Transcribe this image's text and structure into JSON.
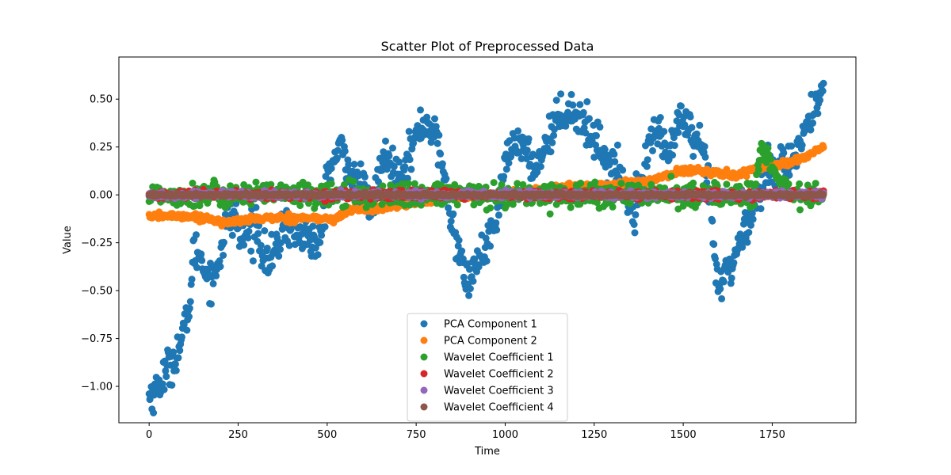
{
  "chart_data": {
    "type": "scatter",
    "title": "Scatter Plot of Preprocessed Data",
    "xlabel": "Time",
    "ylabel": "Value",
    "xlim": [
      -85,
      1985
    ],
    "ylim": [
      -1.19,
      0.72
    ],
    "xticks": [
      0,
      250,
      500,
      750,
      1000,
      1250,
      1500,
      1750
    ],
    "yticks": [
      -1.0,
      -0.75,
      -0.5,
      -0.25,
      0.0,
      0.25,
      0.5
    ],
    "xtick_labels": [
      "0",
      "250",
      "500",
      "750",
      "1000",
      "1250",
      "1500",
      "1750"
    ],
    "ytick_labels": [
      "−1.00",
      "−0.75",
      "−0.50",
      "−0.25",
      "0.00",
      "0.25",
      "0.50"
    ],
    "grid": false,
    "legend_position": "lower-center",
    "n_points_per_series": 1895,
    "series": [
      {
        "name": "PCA Component 1",
        "color": "#1f77b4",
        "anchors": [
          [
            0,
            -1.05
          ],
          [
            20,
            -1.02
          ],
          [
            40,
            -0.95
          ],
          [
            60,
            -0.88
          ],
          [
            80,
            -0.82
          ],
          [
            100,
            -0.7
          ],
          [
            115,
            -0.55
          ],
          [
            125,
            -0.3
          ],
          [
            140,
            -0.3
          ],
          [
            160,
            -0.4
          ],
          [
            180,
            -0.45
          ],
          [
            200,
            -0.3
          ],
          [
            220,
            -0.12
          ],
          [
            240,
            -0.1
          ],
          [
            260,
            -0.25
          ],
          [
            280,
            -0.2
          ],
          [
            300,
            -0.15
          ],
          [
            320,
            -0.3
          ],
          [
            340,
            -0.35
          ],
          [
            360,
            -0.28
          ],
          [
            380,
            -0.15
          ],
          [
            400,
            -0.18
          ],
          [
            420,
            -0.22
          ],
          [
            440,
            -0.2
          ],
          [
            460,
            -0.25
          ],
          [
            480,
            -0.28
          ],
          [
            500,
            0.1
          ],
          [
            520,
            0.18
          ],
          [
            540,
            0.25
          ],
          [
            560,
            0.15
          ],
          [
            580,
            0.05
          ],
          [
            600,
            0.05
          ],
          [
            620,
            -0.1
          ],
          [
            640,
            0.05
          ],
          [
            660,
            0.2
          ],
          [
            680,
            0.15
          ],
          [
            700,
            0.1
          ],
          [
            720,
            0.18
          ],
          [
            740,
            0.25
          ],
          [
            760,
            0.35
          ],
          [
            780,
            0.38
          ],
          [
            800,
            0.32
          ],
          [
            820,
            0.2
          ],
          [
            840,
            -0.05
          ],
          [
            860,
            -0.2
          ],
          [
            880,
            -0.4
          ],
          [
            900,
            -0.45
          ],
          [
            920,
            -0.35
          ],
          [
            940,
            -0.3
          ],
          [
            960,
            -0.2
          ],
          [
            980,
            -0.1
          ],
          [
            1000,
            0.15
          ],
          [
            1020,
            0.25
          ],
          [
            1040,
            0.3
          ],
          [
            1060,
            0.2
          ],
          [
            1080,
            0.15
          ],
          [
            1100,
            0.2
          ],
          [
            1120,
            0.3
          ],
          [
            1140,
            0.38
          ],
          [
            1160,
            0.42
          ],
          [
            1180,
            0.45
          ],
          [
            1200,
            0.42
          ],
          [
            1220,
            0.38
          ],
          [
            1240,
            0.32
          ],
          [
            1260,
            0.28
          ],
          [
            1280,
            0.2
          ],
          [
            1300,
            0.15
          ],
          [
            1320,
            0.1
          ],
          [
            1340,
            0.0
          ],
          [
            1360,
            -0.08
          ],
          [
            1380,
            0.05
          ],
          [
            1400,
            0.2
          ],
          [
            1420,
            0.35
          ],
          [
            1440,
            0.3
          ],
          [
            1460,
            0.2
          ],
          [
            1480,
            0.35
          ],
          [
            1500,
            0.4
          ],
          [
            1520,
            0.3
          ],
          [
            1540,
            0.25
          ],
          [
            1560,
            0.2
          ],
          [
            1580,
            -0.1
          ],
          [
            1590,
            -0.4
          ],
          [
            1600,
            -0.5
          ],
          [
            1620,
            -0.4
          ],
          [
            1640,
            -0.35
          ],
          [
            1660,
            -0.25
          ],
          [
            1680,
            -0.15
          ],
          [
            1700,
            -0.05
          ],
          [
            1720,
            0.05
          ],
          [
            1740,
            0.15
          ],
          [
            1760,
            0.15
          ],
          [
            1780,
            0.2
          ],
          [
            1800,
            0.1
          ],
          [
            1820,
            0.2
          ],
          [
            1840,
            0.35
          ],
          [
            1860,
            0.4
          ],
          [
            1880,
            0.45
          ],
          [
            1895,
            0.6
          ]
        ],
        "noise": 0.05
      },
      {
        "name": "PCA Component 2",
        "color": "#ff7f0e",
        "anchors": [
          [
            0,
            -0.11
          ],
          [
            100,
            -0.11
          ],
          [
            160,
            -0.12
          ],
          [
            220,
            -0.15
          ],
          [
            260,
            -0.13
          ],
          [
            350,
            -0.12
          ],
          [
            450,
            -0.12
          ],
          [
            520,
            -0.13
          ],
          [
            560,
            -0.08
          ],
          [
            650,
            -0.07
          ],
          [
            750,
            -0.04
          ],
          [
            850,
            -0.01
          ],
          [
            1000,
            0.0
          ],
          [
            1150,
            0.04
          ],
          [
            1300,
            0.05
          ],
          [
            1420,
            0.08
          ],
          [
            1500,
            0.13
          ],
          [
            1580,
            0.12
          ],
          [
            1650,
            0.1
          ],
          [
            1700,
            0.14
          ],
          [
            1800,
            0.17
          ],
          [
            1850,
            0.2
          ],
          [
            1895,
            0.25
          ]
        ],
        "noise": 0.008
      },
      {
        "name": "Wavelet Coefficient 1",
        "color": "#2ca02c",
        "anchors": [
          [
            0,
            0.0
          ],
          [
            1700,
            0.0
          ],
          [
            1720,
            0.25
          ],
          [
            1760,
            0.1
          ],
          [
            1800,
            0.0
          ],
          [
            1895,
            0.0
          ]
        ],
        "noise": 0.03
      },
      {
        "name": "Wavelet Coefficient 2",
        "color": "#d62728",
        "anchors": [
          [
            0,
            0.0
          ],
          [
            1895,
            0.0
          ]
        ],
        "noise": 0.01
      },
      {
        "name": "Wavelet Coefficient 3",
        "color": "#9467bd",
        "anchors": [
          [
            0,
            0.0
          ],
          [
            1895,
            0.0
          ]
        ],
        "noise": 0.008
      },
      {
        "name": "Wavelet Coefficient 4",
        "color": "#8c564b",
        "anchors": [
          [
            0,
            0.0
          ],
          [
            1895,
            0.0
          ]
        ],
        "noise": 0.004
      }
    ]
  }
}
